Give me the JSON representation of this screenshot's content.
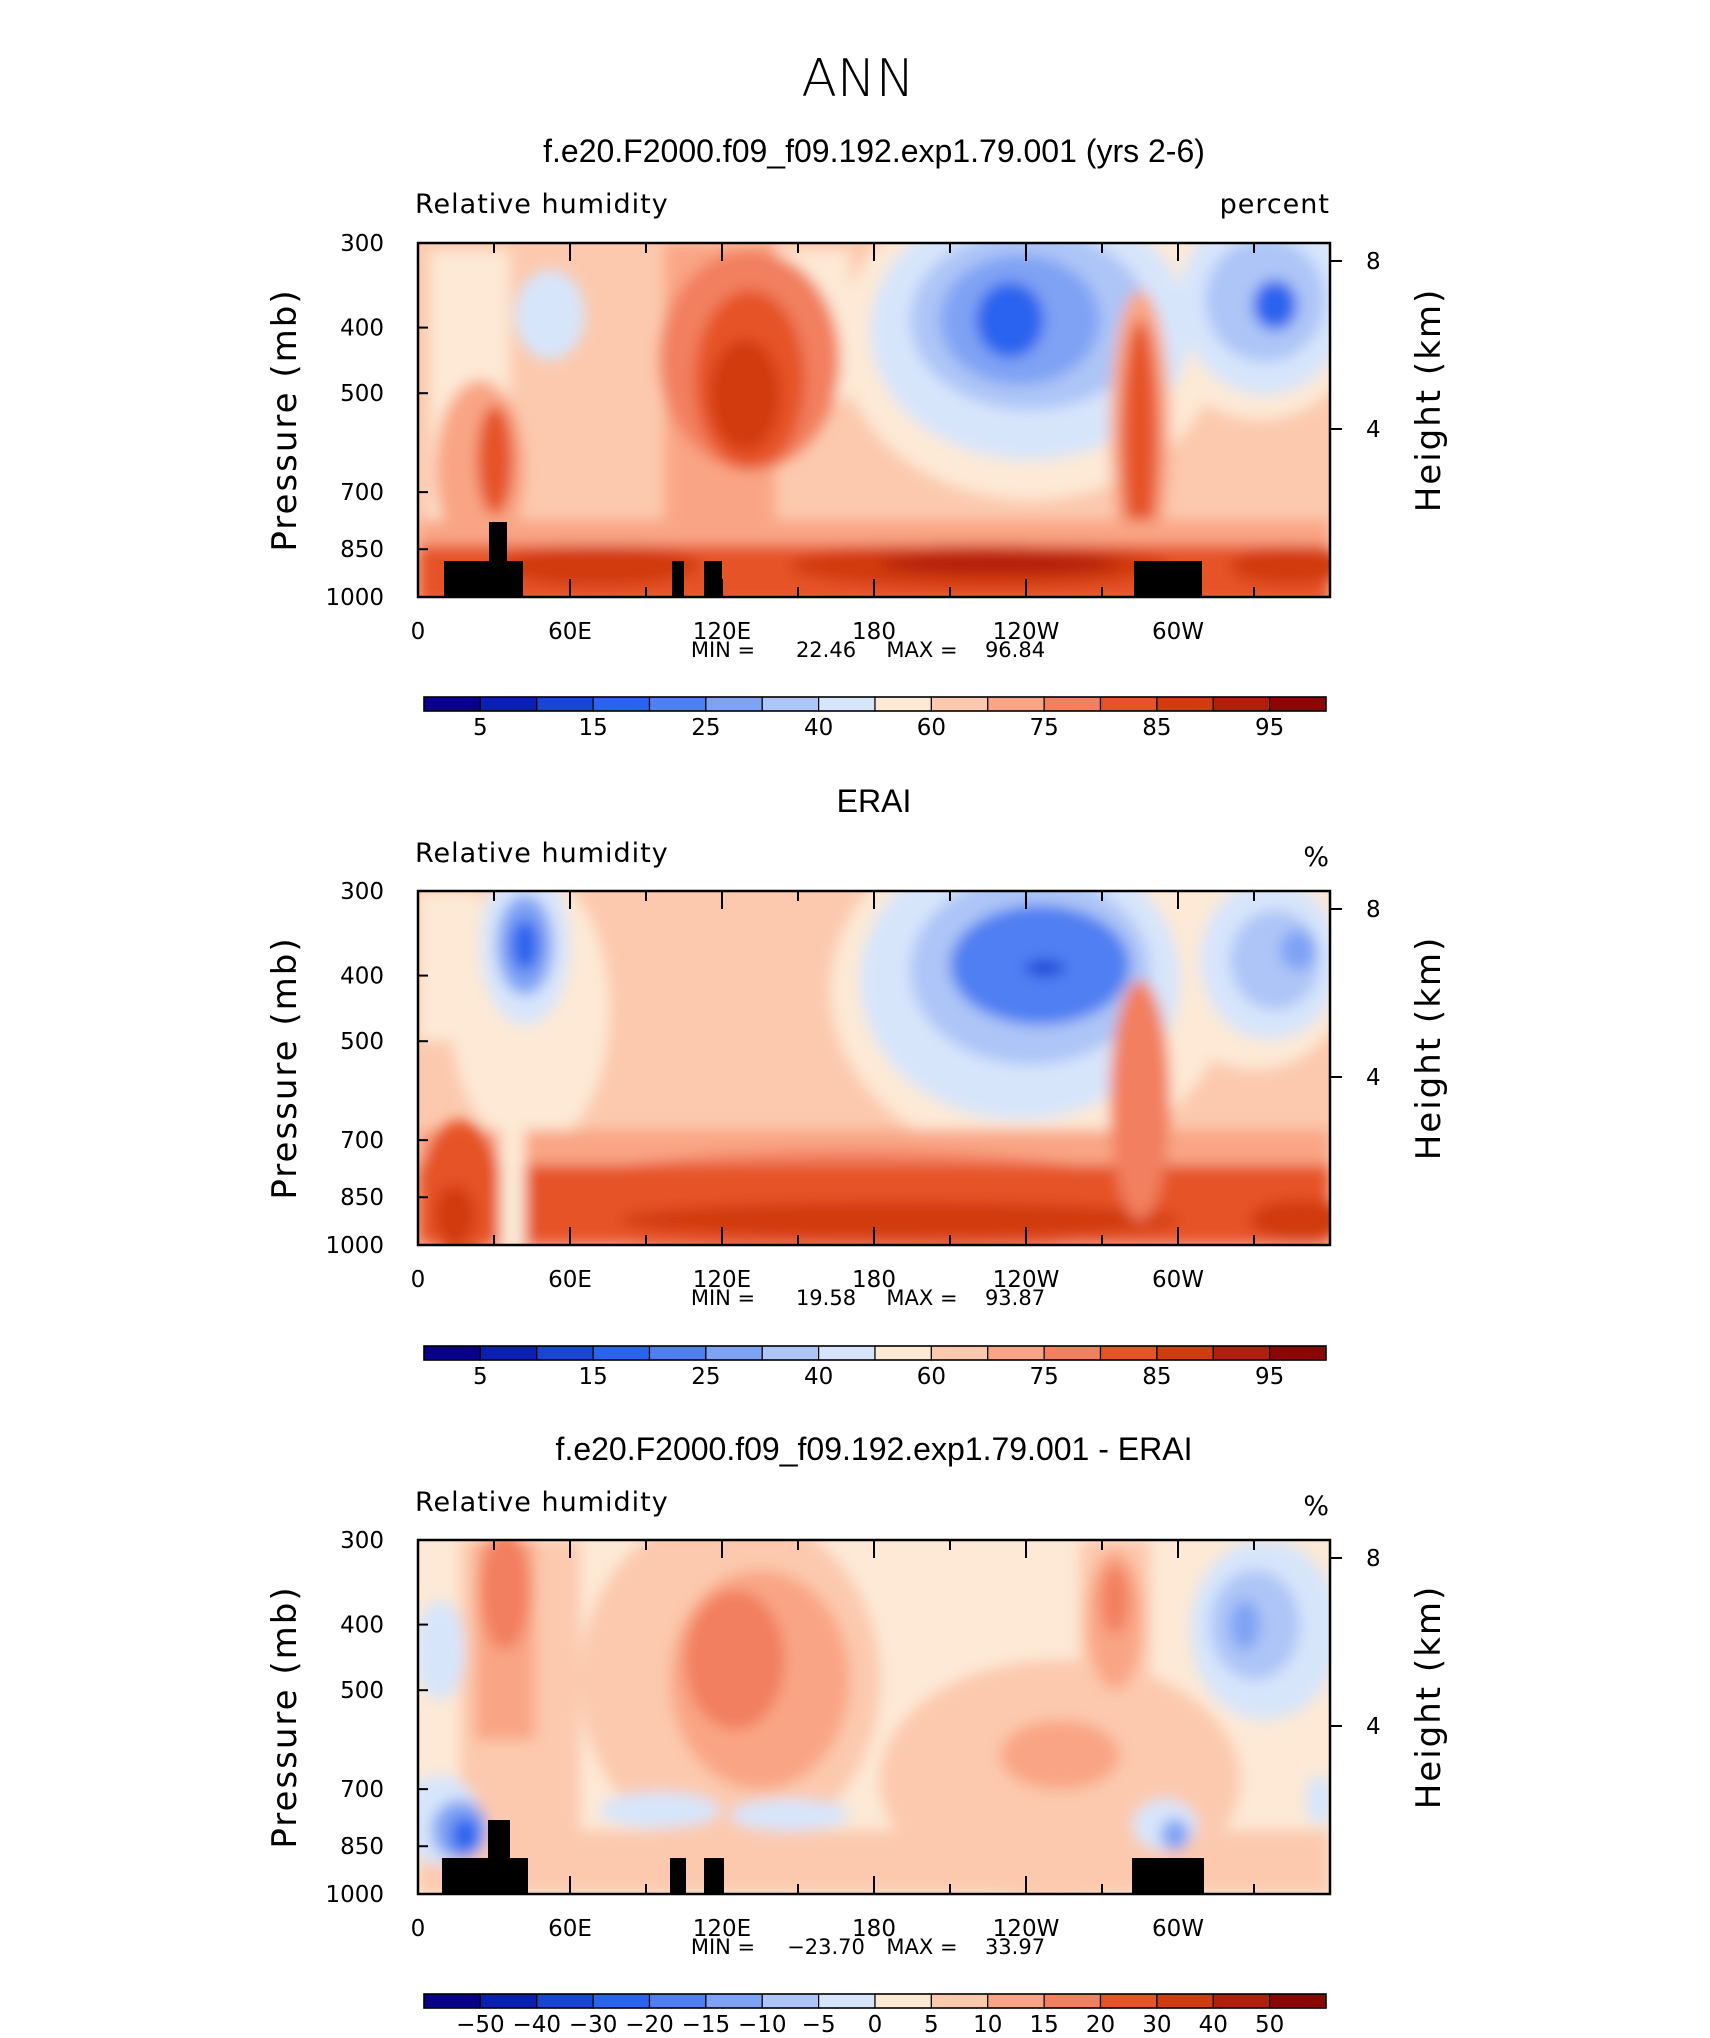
{
  "figure": {
    "title": "ANN"
  },
  "colors": {
    "abs_scale": [
      "#08008c",
      "#0a1fb4",
      "#1745d6",
      "#2a63ef",
      "#4f7ff2",
      "#7fa2f4",
      "#adc5f7",
      "#d7e5fb",
      "#fde9d6",
      "#fcc9ae",
      "#f9a585",
      "#f27f5e",
      "#e65327",
      "#d13b10",
      "#b11f0c",
      "#8e0505"
    ],
    "diff_scale": [
      "#08008c",
      "#0a1fb4",
      "#1745d6",
      "#2a63ef",
      "#4f7ff2",
      "#7fa2f4",
      "#adc5f7",
      "#d7e5fb",
      "#fde9d6",
      "#fcc9ae",
      "#f9a585",
      "#f27f5e",
      "#e65327",
      "#d13b10",
      "#b11f0c",
      "#8e0505"
    ],
    "topography": "#000000"
  },
  "chart_data": [
    {
      "type": "heatmap",
      "title": "f.e20.F2000.f09_f09.192.exp1.79.001 (yrs 2-6)",
      "variable": "Relative humidity",
      "units": "percent",
      "ylabel": "Pressure (mb)",
      "y2label": "Height (km)",
      "yticks": [
        "300",
        "400",
        "500",
        "700",
        "850",
        "1000"
      ],
      "ytick_values": [
        300,
        400,
        500,
        700,
        850,
        1000
      ],
      "y2ticks": [
        "8",
        "4"
      ],
      "y2tick_values": [
        8,
        4
      ],
      "xticks": [
        "0",
        "60E",
        "120E",
        "180",
        "120W",
        "60W"
      ],
      "xtick_values": [
        0,
        60,
        120,
        180,
        240,
        300
      ],
      "xlim": [
        0,
        360
      ],
      "ylim": [
        1000,
        300
      ],
      "stats": {
        "min_label": "MIN =",
        "min": "22.46",
        "max_label": "MAX =",
        "max": "96.84"
      },
      "colorbar_labels": [
        "5",
        "15",
        "25",
        "40",
        "60",
        "75",
        "85",
        "95"
      ],
      "colorbar_boundaries": [
        5,
        10,
        15,
        20,
        25,
        30,
        40,
        50,
        60,
        70,
        75,
        80,
        85,
        90,
        95
      ],
      "description": "Zonally averaged relative humidity; blue minima near 130W and 20W at 400-500 mb, red maxima near 110E mid-troposphere and along 900-950 mb; black topography near 10-40E, 100-120E, 60-80W."
    },
    {
      "type": "heatmap",
      "title": "ERAI",
      "variable": "Relative humidity",
      "units": "%",
      "ylabel": "Pressure (mb)",
      "y2label": "Height (km)",
      "yticks": [
        "300",
        "400",
        "500",
        "700",
        "850",
        "1000"
      ],
      "ytick_values": [
        300,
        400,
        500,
        700,
        850,
        1000
      ],
      "y2ticks": [
        "8",
        "4"
      ],
      "y2tick_values": [
        8,
        4
      ],
      "xticks": [
        "0",
        "60E",
        "120E",
        "180",
        "120W",
        "60W"
      ],
      "xtick_values": [
        0,
        60,
        120,
        180,
        240,
        300
      ],
      "xlim": [
        0,
        360
      ],
      "ylim": [
        1000,
        300
      ],
      "stats": {
        "min_label": "MIN =",
        "min": "19.58",
        "max_label": "MAX =",
        "max": "93.87"
      },
      "colorbar_labels": [
        "5",
        "15",
        "25",
        "40",
        "60",
        "75",
        "85",
        "95"
      ],
      "colorbar_boundaries": [
        5,
        10,
        15,
        20,
        25,
        30,
        40,
        50,
        60,
        70,
        75,
        80,
        85,
        90,
        95
      ],
      "description": "Reanalysis relative humidity; deep blue minimum near 130W at 400-500 mb, smaller minimum near 40E, orange/red boundary layer maxima."
    },
    {
      "type": "heatmap",
      "title": "f.e20.F2000.f09_f09.192.exp1.79.001 - ERAI",
      "variable": "Relative humidity",
      "units": "%",
      "ylabel": "Pressure (mb)",
      "y2label": "Height (km)",
      "yticks": [
        "300",
        "400",
        "500",
        "700",
        "850",
        "1000"
      ],
      "ytick_values": [
        300,
        400,
        500,
        700,
        850,
        1000
      ],
      "y2ticks": [
        "8",
        "4"
      ],
      "y2tick_values": [
        8,
        4
      ],
      "xticks": [
        "0",
        "60E",
        "120E",
        "180",
        "120W",
        "60W"
      ],
      "xtick_values": [
        0,
        60,
        120,
        180,
        240,
        300
      ],
      "xlim": [
        0,
        360
      ],
      "ylim": [
        1000,
        300
      ],
      "stats": {
        "min_label": "MIN =",
        "min": "−23.70",
        "max_label": "MAX =",
        "max": "33.97"
      },
      "colorbar_labels": [
        "−50",
        "−40",
        "−30",
        "−20",
        "−15",
        "−10",
        "−5",
        "0",
        "5",
        "10",
        "15",
        "20",
        "30",
        "40",
        "50"
      ],
      "colorbar_boundaries": [
        -50,
        -40,
        -30,
        -20,
        -15,
        -10,
        -5,
        0,
        5,
        10,
        15,
        20,
        30,
        40,
        50
      ],
      "description": "Model minus reanalysis difference; positive (orange) bias over most of the domain, negative (blue) bias near 20W aloft and near-surface around 20E, 100-140E and 60W."
    }
  ]
}
